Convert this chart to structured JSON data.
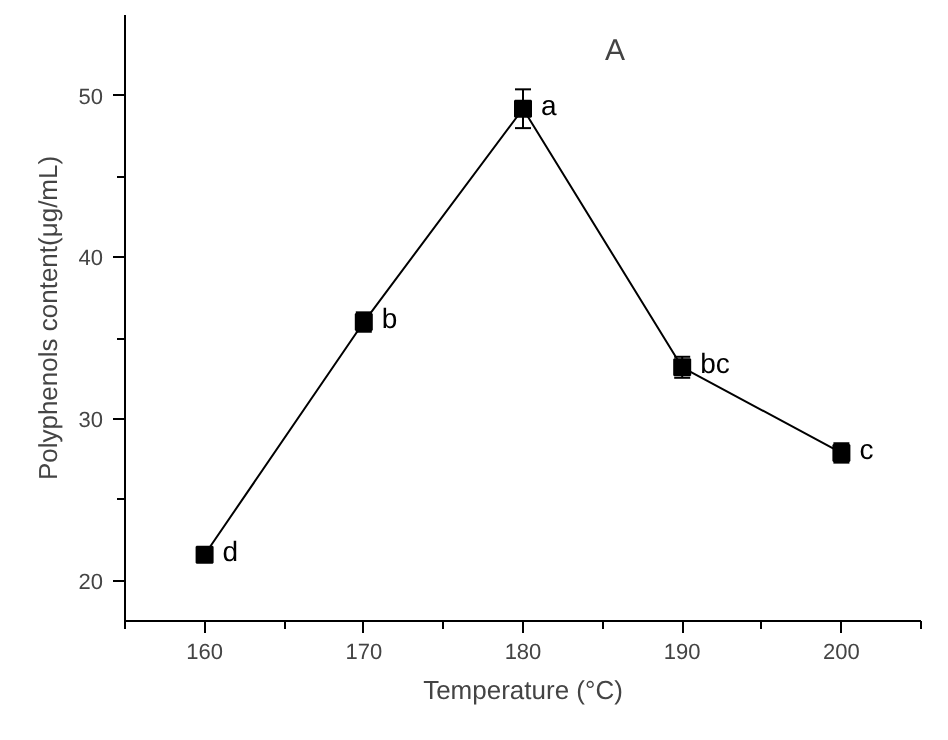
{
  "chart_data": {
    "type": "line",
    "title": "A",
    "xlabel": "Temperature (°C)",
    "ylabel": "Polyphenols content(μg/mL)",
    "x": [
      160,
      170,
      180,
      190,
      200
    ],
    "series": [
      {
        "color": "#000000",
        "values": [
          21.6,
          36.0,
          49.2,
          33.2,
          27.9
        ],
        "errors": [
          0.3,
          0.6,
          1.2,
          0.65,
          0.6
        ]
      }
    ],
    "xlim": [
      155,
      205
    ],
    "ylim": [
      17.5,
      55
    ],
    "xticks": [
      {
        "value": 155,
        "label": null
      },
      160,
      {
        "value": 165,
        "label": null
      },
      170,
      {
        "value": 175,
        "label": null
      },
      180,
      {
        "value": 185,
        "label": null
      },
      190,
      {
        "value": 195,
        "label": null
      },
      200,
      {
        "value": 205,
        "label": null
      }
    ],
    "yticks": [
      20,
      {
        "value": 25,
        "label": null
      },
      30,
      {
        "value": 35,
        "label": null
      },
      40,
      {
        "value": 45,
        "label": null
      },
      50
    ],
    "marker": "square",
    "line_style": "solid",
    "grid": false,
    "annotations": [
      {
        "text": "d",
        "x": 160,
        "y": 21.6
      },
      {
        "text": "b",
        "x": 170,
        "y": 36.0
      },
      {
        "text": "a",
        "x": 180,
        "y": 49.2
      },
      {
        "text": "bc",
        "x": 190,
        "y": 33.2
      },
      {
        "text": "c",
        "x": 200,
        "y": 27.9
      }
    ]
  }
}
